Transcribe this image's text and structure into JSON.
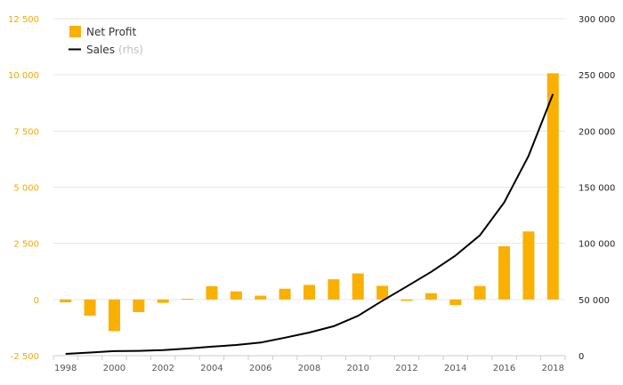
{
  "chart_data": {
    "type": "bar",
    "title": "",
    "xlabel": "",
    "categories": [
      "1998",
      "1999",
      "2000",
      "2001",
      "2002",
      "2003",
      "2004",
      "2005",
      "2006",
      "2007",
      "2008",
      "2009",
      "2010",
      "2011",
      "2012",
      "2013",
      "2014",
      "2015",
      "2016",
      "2017",
      "2018"
    ],
    "x_tick_labels": [
      "1998",
      "2000",
      "2002",
      "2004",
      "2006",
      "2008",
      "2010",
      "2012",
      "2014",
      "2016",
      "2018"
    ],
    "series": [
      {
        "name": "Net Profit",
        "type": "bar",
        "axis": "left",
        "color": "#f9b000",
        "values": [
          -125,
          -720,
          -1410,
          -560,
          -150,
          30,
          590,
          360,
          170,
          480,
          650,
          900,
          1160,
          610,
          -60,
          280,
          -250,
          600,
          2370,
          3030,
          10070
        ]
      },
      {
        "name": "Sales",
        "name_suffix": "(rhs)",
        "type": "line",
        "axis": "right",
        "color": "#000000",
        "values": [
          1600,
          2800,
          4000,
          4300,
          5000,
          6300,
          8000,
          9500,
          11600,
          16000,
          20600,
          26200,
          35500,
          48800,
          61600,
          74600,
          89100,
          107100,
          136400,
          177900,
          232900
        ]
      }
    ],
    "left_axis": {
      "min": -2500,
      "max": 12500,
      "ticks": [
        -2500,
        0,
        2500,
        5000,
        7500,
        10000,
        12500
      ],
      "tick_labels": [
        "-2 500",
        "0",
        "2 500",
        "5 000",
        "7 500",
        "10 000",
        "12 500"
      ],
      "color": "#f5a800"
    },
    "right_axis": {
      "min": 0,
      "max": 300000,
      "ticks": [
        0,
        50000,
        100000,
        150000,
        200000,
        250000,
        300000
      ],
      "tick_labels": [
        "0",
        "50 000",
        "100 000",
        "150 000",
        "200 000",
        "250 000",
        "300 000"
      ]
    },
    "legend": {
      "position": "top-left",
      "entries": [
        {
          "label": "Net Profit"
        },
        {
          "label": "Sales",
          "suffix": "(rhs)"
        }
      ]
    },
    "grid": true,
    "colors": {
      "grid": "#e6e6e6",
      "axis": "#cccccc",
      "bar": "#f9b000",
      "line": "#000000"
    }
  }
}
